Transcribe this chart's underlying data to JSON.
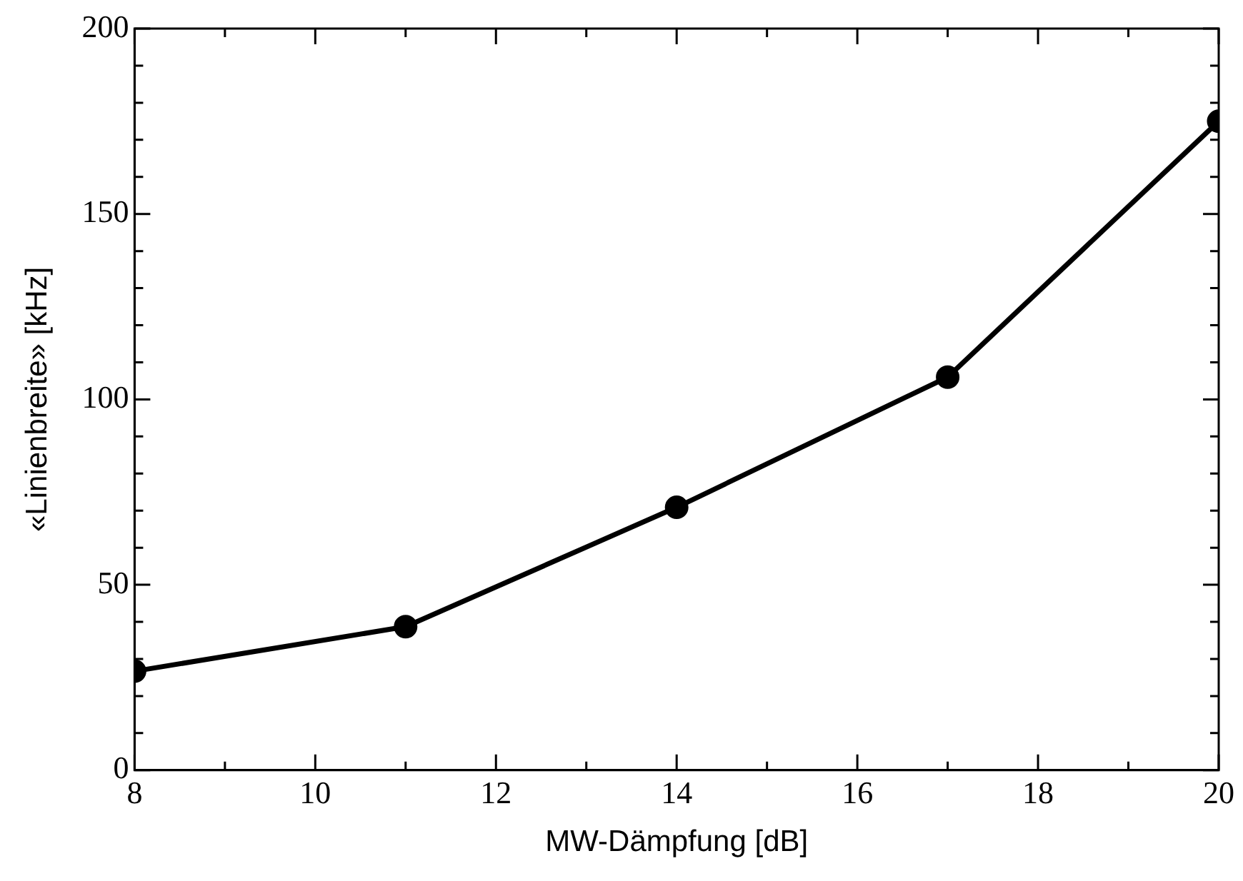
{
  "chart_data": {
    "type": "line",
    "xlabel": "MW-Dämpfung [dB]",
    "ylabel": "«Linienbreite» [kHz]",
    "x": [
      8,
      11,
      14,
      17,
      20
    ],
    "series": [
      {
        "color": "#000000",
        "values": [
          26.7,
          38.7,
          70.9,
          106,
          175
        ]
      }
    ],
    "xlim": [
      8,
      20
    ],
    "xticks": [
      8,
      {
        "value": 9,
        "label": null
      },
      10,
      {
        "value": 11,
        "label": null
      },
      12,
      {
        "value": 13,
        "label": null
      },
      14,
      {
        "value": 15,
        "label": null
      },
      16,
      {
        "value": 17,
        "label": null
      },
      18,
      {
        "value": 19,
        "label": null
      },
      20
    ],
    "ylim": [
      0,
      200
    ],
    "yticks": [
      0,
      {
        "value": 10,
        "label": null
      },
      {
        "value": 20,
        "label": null
      },
      {
        "value": 30,
        "label": null
      },
      {
        "value": 40,
        "label": null
      },
      50,
      {
        "value": 60,
        "label": null
      },
      {
        "value": 70,
        "label": null
      },
      {
        "value": 80,
        "label": null
      },
      {
        "value": 90,
        "label": null
      },
      100,
      {
        "value": 110,
        "label": null
      },
      {
        "value": 120,
        "label": null
      },
      {
        "value": 130,
        "label": null
      },
      {
        "value": 140,
        "label": null
      },
      150,
      {
        "value": 160,
        "label": null
      },
      {
        "value": 170,
        "label": null
      },
      {
        "value": 180,
        "label": null
      },
      {
        "value": 190,
        "label": null
      },
      200
    ],
    "grid": false,
    "legend": false,
    "marker": "circle",
    "line_style": "solid"
  }
}
